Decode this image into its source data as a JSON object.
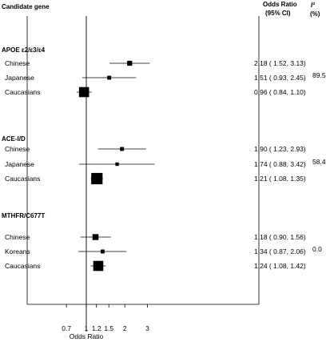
{
  "headers": {
    "gene": "Candidate gene",
    "or_line1": "Odds Ratio",
    "or_line2": "(95% CI)",
    "i2_line1": "I²",
    "i2_line2": "(%)"
  },
  "chart_data": {
    "type": "forest",
    "xlabel": "Odds Ratio",
    "x_scale": "log",
    "xlim": [
      0.6,
      3.6
    ],
    "xticks": [
      0.7,
      1,
      1.2,
      1.5,
      2,
      3
    ],
    "xtick_labels": [
      "0.7",
      "1",
      "1.2",
      "1.5",
      "2",
      "3"
    ],
    "reference_line": 1,
    "groups": [
      {
        "label": "APOE ε2/ε3/ε4",
        "i2": "89.5",
        "rows": [
          {
            "label": "Chinese",
            "or": 2.18,
            "ci": [
              1.52,
              3.13
            ],
            "weight": 1,
            "text": "2.18 ( 1.52, 3.13)"
          },
          {
            "label": "Japanese",
            "or": 1.51,
            "ci": [
              0.93,
              2.45
            ],
            "weight": 0.6,
            "text": "1.51 ( 0.93, 2.45)"
          },
          {
            "label": "Caucasians",
            "or": 0.96,
            "ci": [
              0.84,
              1.1
            ],
            "weight": 3,
            "text": "0.96 ( 0.84, 1.10)"
          }
        ]
      },
      {
        "label": "ACE-I/D",
        "i2": "58.4",
        "rows": [
          {
            "label": "Chinese",
            "or": 1.9,
            "ci": [
              1.23,
              2.93
            ],
            "weight": 0.6,
            "text": "1.90 ( 1.23, 2.93)"
          },
          {
            "label": "Japanese",
            "or": 1.74,
            "ci": [
              0.88,
              3.42
            ],
            "weight": 0.4,
            "text": "1.74 ( 0.88, 3.42)"
          },
          {
            "label": "Caucasians",
            "or": 1.21,
            "ci": [
              1.08,
              1.35
            ],
            "weight": 3.5,
            "text": "1.21 ( 1.08, 1.35)"
          }
        ]
      },
      {
        "label": "MTHFR/C677T",
        "i2": "0.0",
        "rows": [
          {
            "label": "Chinese",
            "or": 1.18,
            "ci": [
              0.9,
              1.56
            ],
            "weight": 1.4,
            "text": "1.18 ( 0.90, 1.56)"
          },
          {
            "label": "Koreans",
            "or": 1.34,
            "ci": [
              0.87,
              2.06
            ],
            "weight": 0.6,
            "text": "1.34 ( 0.87, 2.06)"
          },
          {
            "label": "Caucasians",
            "or": 1.24,
            "ci": [
              1.08,
              1.42
            ],
            "weight": 3,
            "text": "1.24 ( 1.08, 1.42)"
          }
        ]
      }
    ]
  }
}
